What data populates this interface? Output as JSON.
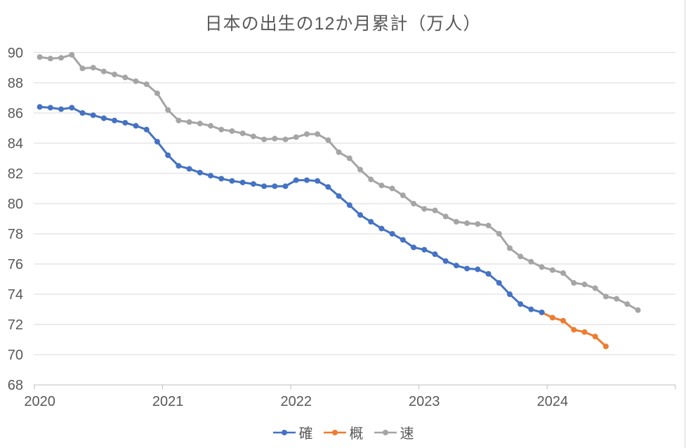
{
  "chart_data": {
    "type": "line",
    "title": "日本の出生の12か月累計（万人）",
    "xlabel": "",
    "ylabel": "",
    "ylim": [
      68,
      90
    ],
    "y_tick_step": 2,
    "y_ticks": [
      68,
      70,
      72,
      74,
      76,
      78,
      80,
      82,
      84,
      86,
      88,
      90
    ],
    "x_year_tick_labels": [
      "2020",
      "2021",
      "2022",
      "2023",
      "2024"
    ],
    "x_interval": "monthly",
    "x_months": [
      "2020-01",
      "2020-02",
      "2020-03",
      "2020-04",
      "2020-05",
      "2020-06",
      "2020-07",
      "2020-08",
      "2020-09",
      "2020-10",
      "2020-11",
      "2020-12",
      "2021-01",
      "2021-02",
      "2021-03",
      "2021-04",
      "2021-05",
      "2021-06",
      "2021-07",
      "2021-08",
      "2021-09",
      "2021-10",
      "2021-11",
      "2021-12",
      "2022-01",
      "2022-02",
      "2022-03",
      "2022-04",
      "2022-05",
      "2022-06",
      "2022-07",
      "2022-08",
      "2022-09",
      "2022-10",
      "2022-11",
      "2022-12",
      "2023-01",
      "2023-02",
      "2023-03",
      "2023-04",
      "2023-05",
      "2023-06",
      "2023-07",
      "2023-08",
      "2023-09",
      "2023-10",
      "2023-11",
      "2023-12",
      "2024-01",
      "2024-02",
      "2024-03",
      "2024-04",
      "2024-05",
      "2024-06",
      "2024-07",
      "2024-08",
      "2024-09"
    ],
    "grid": true,
    "legend_position": "bottom",
    "series": [
      {
        "name": "確",
        "color": "#4472C4",
        "start_month": "2020-01",
        "start_index": 0,
        "values": [
          86.4,
          86.35,
          86.25,
          86.35,
          86.0,
          85.85,
          85.65,
          85.5,
          85.35,
          85.15,
          84.9,
          84.1,
          83.2,
          82.5,
          82.3,
          82.05,
          81.85,
          81.65,
          81.5,
          81.4,
          81.3,
          81.15,
          81.15,
          81.15,
          81.55,
          81.55,
          81.5,
          81.1,
          80.5,
          79.9,
          79.25,
          78.8,
          78.35,
          78.0,
          77.6,
          77.1,
          76.95,
          76.65,
          76.2,
          75.9,
          75.7,
          75.65,
          75.35,
          74.75,
          74.0,
          73.35,
          73.0,
          72.8
        ]
      },
      {
        "name": "概",
        "color": "#ED7D31",
        "start_month": "2023-12",
        "start_index": 47,
        "values": [
          72.8,
          72.45,
          72.25,
          71.65,
          71.5,
          71.2,
          70.55
        ]
      },
      {
        "name": "速",
        "color": "#A5A5A5",
        "start_month": "2020-01",
        "start_index": 0,
        "values": [
          89.7,
          89.6,
          89.65,
          89.85,
          88.95,
          89.0,
          88.75,
          88.55,
          88.35,
          88.1,
          87.9,
          87.3,
          86.2,
          85.5,
          85.4,
          85.3,
          85.15,
          84.9,
          84.8,
          84.65,
          84.45,
          84.25,
          84.3,
          84.25,
          84.4,
          84.6,
          84.6,
          84.2,
          83.4,
          83.0,
          82.25,
          81.6,
          81.2,
          81.0,
          80.55,
          80.0,
          79.65,
          79.55,
          79.15,
          78.8,
          78.7,
          78.65,
          78.55,
          78.0,
          77.05,
          76.5,
          76.15,
          75.8,
          75.6,
          75.4,
          74.75,
          74.65,
          74.4,
          73.85,
          73.7,
          73.35,
          72.95
        ]
      }
    ],
    "style": {
      "text_color": "#595959",
      "gridline_color": "#D9D9D9",
      "axis_color": "#BFBFBF",
      "line_width": 3,
      "marker_radius": 4
    }
  }
}
